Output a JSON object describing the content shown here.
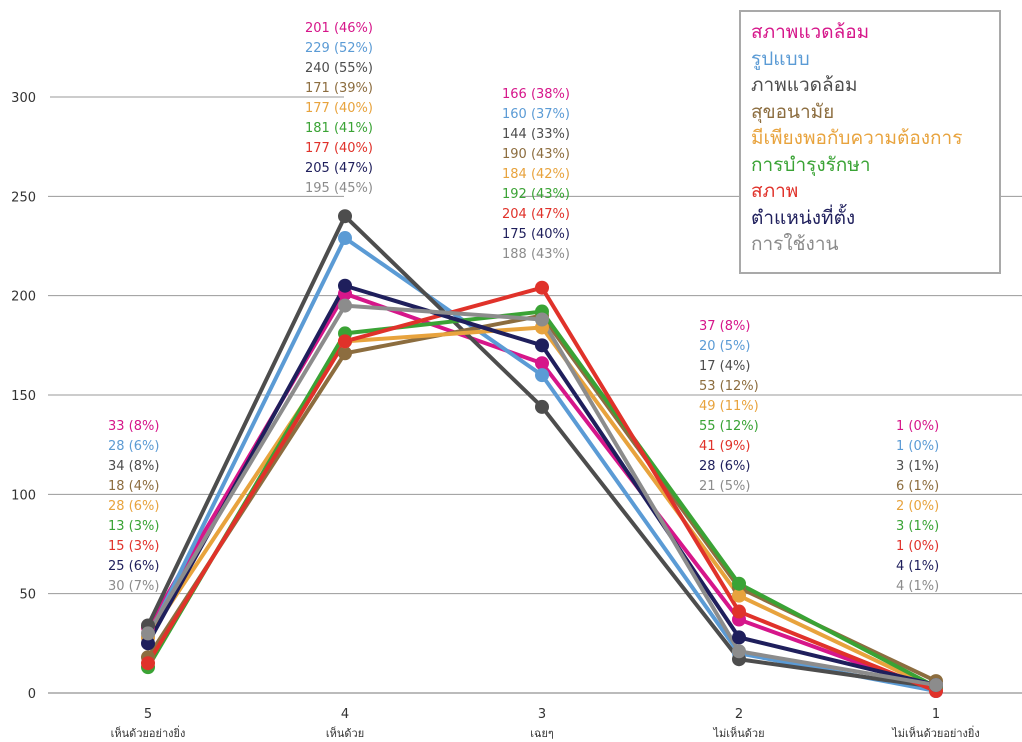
{
  "chart_data": {
    "type": "line",
    "x": [
      "5",
      "4",
      "3",
      "2",
      "1"
    ],
    "x_names": [
      "เห็นด้วยอย่างยิ่ง",
      "เห็นด้วย",
      "เฉยๆ",
      "ไม่เห็นด้วย",
      "ไม่เห็นด้วยอย่างยิ่ง"
    ],
    "ylim": [
      0,
      300
    ],
    "yticks": [
      "0",
      "50",
      "100",
      "150",
      "200",
      "250",
      "300"
    ],
    "grid": true,
    "legend_position": "top-right",
    "series": [
      {
        "name": "สภาพแวดล้อม",
        "color": "#d6168a",
        "values": [
          33,
          201,
          166,
          37,
          1
        ],
        "labels": [
          "33  (8%)",
          "201  (46%)",
          "166  (38%)",
          "37  (8%)",
          "1  (0%)"
        ]
      },
      {
        "name": "รูปแบบ",
        "color": "#5b9bd5",
        "values": [
          28,
          229,
          160,
          20,
          1
        ],
        "labels": [
          "28  (6%)",
          "229  (52%)",
          "160  (37%)",
          "20  (5%)",
          "1  (0%)"
        ]
      },
      {
        "name": "ภาพแวดล้อม",
        "color": "#4d4d4d",
        "values": [
          34,
          240,
          144,
          17,
          3
        ],
        "labels": [
          "34  (8%)",
          "240  (55%)",
          "144  (33%)",
          "17  (4%)",
          "3  (1%)"
        ]
      },
      {
        "name": "สุขอนามัย",
        "color": "#8c6d3f",
        "values": [
          18,
          171,
          190,
          53,
          6
        ],
        "labels": [
          "18  (4%)",
          "171  (39%)",
          "190  (43%)",
          "53 (12%)",
          "6  (1%)"
        ]
      },
      {
        "name": "มีเพียงพอกับความต้องการ",
        "color": "#e8a33d",
        "values": [
          28,
          177,
          184,
          49,
          2
        ],
        "labels": [
          "28  (6%)",
          "177  (40%)",
          "184  (42%)",
          "49 (11%)",
          "2  (0%)"
        ]
      },
      {
        "name": "การบำรุงรักษา",
        "color": "#3aa335",
        "values": [
          13,
          181,
          192,
          55,
          3
        ],
        "labels": [
          "13  (3%)",
          "181  (41%)",
          "192  (43%)",
          "55 (12%)",
          "3  (1%)"
        ]
      },
      {
        "name": "สภาพ",
        "color": "#e0322a",
        "values": [
          15,
          177,
          204,
          41,
          1
        ],
        "labels": [
          "15  (3%)",
          "177  (40%)",
          "204  (47%)",
          "41  (9%)",
          "1 (0%)"
        ]
      },
      {
        "name": "ตำแหน่งที่ตั้ง",
        "color": "#1f1f5c",
        "values": [
          25,
          205,
          175,
          28,
          4
        ],
        "labels": [
          "25  (6%)",
          "205  (47%)",
          "175  (40%)",
          "28  (6%)",
          "4  (1%)"
        ]
      },
      {
        "name": "การใช้งาน",
        "color": "#8c8c8c",
        "values": [
          30,
          195,
          188,
          21,
          4
        ],
        "labels": [
          "30  (7%)",
          "195  (45%)",
          "188  (43%)",
          "21  (5%)",
          "4  (1%)"
        ]
      }
    ]
  }
}
